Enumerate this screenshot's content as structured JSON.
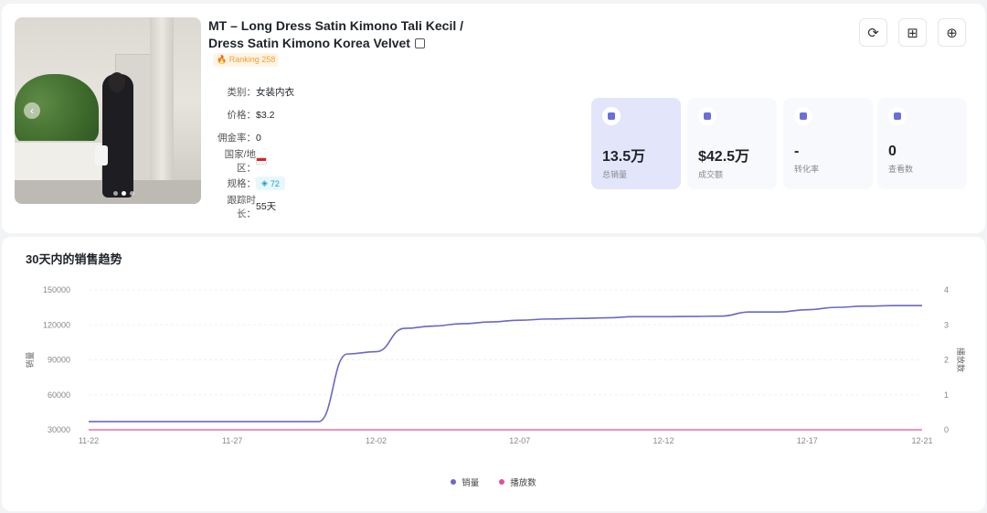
{
  "product": {
    "title": "MT – Long Dress Satin Kimono Tali Kecil / Dress Satin Kimono Korea Velvet",
    "ranking": "Ranking 258",
    "fields": [
      {
        "key": "类别：",
        "value": "女装内衣"
      },
      {
        "key": "价格：",
        "value": "$3.2"
      },
      {
        "key": "佣金率：",
        "value": "0"
      },
      {
        "key": "国家/地区：",
        "value": ""
      },
      {
        "key": "规格：",
        "value": "72"
      },
      {
        "key": "跟踪时长：",
        "value": "55天"
      }
    ]
  },
  "actions": [
    {
      "name": "refresh-icon",
      "glyph": "⟳"
    },
    {
      "name": "grid-icon",
      "glyph": "⊞"
    },
    {
      "name": "shop-icon",
      "glyph": "⊕"
    }
  ],
  "stats": [
    {
      "value": "13.5万",
      "label": "总销量",
      "highlight": true
    },
    {
      "value": "$42.5万",
      "label": "成交额",
      "highlight": false
    },
    {
      "value": "-",
      "label": "转化率",
      "highlight": false
    },
    {
      "value": "0",
      "label": "查看数",
      "highlight": false
    }
  ],
  "chart_data": {
    "type": "line",
    "title": "30天内的销售趋势",
    "ylabel": "销量",
    "y2label": "播放数",
    "ylim": [
      30000,
      150000
    ],
    "y_ticks": [
      30000,
      60000,
      90000,
      120000,
      150000
    ],
    "y2lim": [
      0,
      4
    ],
    "y2_ticks": [
      0,
      1,
      2,
      3,
      4
    ],
    "x_tick_labels": [
      "11-22",
      "11-27",
      "12-02",
      "12-07",
      "12-12",
      "12-17",
      "12-21"
    ],
    "x": [
      "11-22",
      "11-23",
      "11-24",
      "11-25",
      "11-26",
      "11-27",
      "11-28",
      "11-29",
      "11-30",
      "12-01",
      "12-02",
      "12-03",
      "12-04",
      "12-05",
      "12-06",
      "12-07",
      "12-08",
      "12-09",
      "12-10",
      "12-11",
      "12-12",
      "12-13",
      "12-14",
      "12-15",
      "12-16",
      "12-17",
      "12-18",
      "12-19",
      "12-20",
      "12-21"
    ],
    "series": [
      {
        "name": "销量",
        "color": "#6b67c8",
        "axis": "left",
        "values": [
          37000,
          37000,
          37000,
          37000,
          37000,
          37000,
          37000,
          37000,
          37000,
          95000,
          97000,
          117000,
          119000,
          121000,
          122500,
          124000,
          125000,
          125500,
          126000,
          127000,
          127000,
          127200,
          127500,
          131000,
          131000,
          133000,
          135000,
          136000,
          136500,
          136500
        ]
      },
      {
        "name": "播放数",
        "color": "#e0509a",
        "axis": "right",
        "values": [
          0,
          0,
          0,
          0,
          0,
          0,
          0,
          0,
          0,
          0,
          0,
          0,
          0,
          0,
          0,
          0,
          0,
          0,
          0,
          0,
          0,
          0,
          0,
          0,
          0,
          0,
          0,
          0,
          0,
          0
        ]
      }
    ],
    "grid": true,
    "legend": "bottom"
  }
}
